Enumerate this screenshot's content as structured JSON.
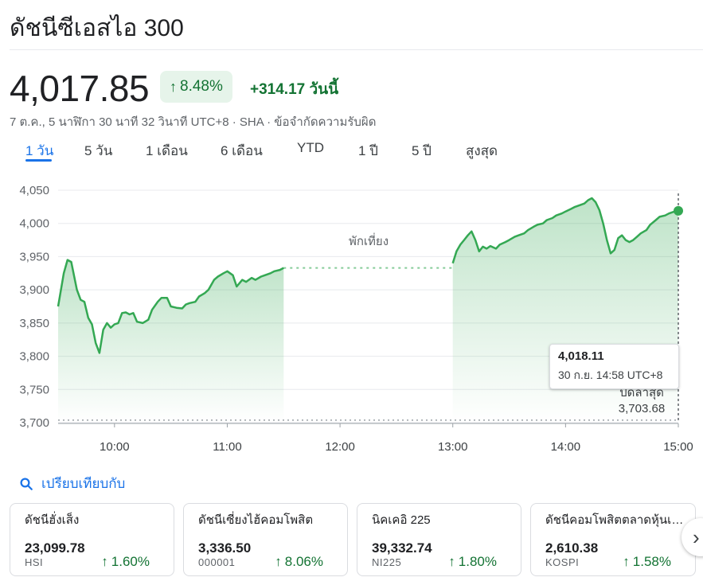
{
  "header": {
    "title": "ดัชนีซีเอสไอ 300"
  },
  "quote": {
    "price": "4,017.85",
    "percent": "8.48%",
    "change": "+314.17",
    "today_label": "วันนี้",
    "meta": "7 ต.ค., 5 นาฬิกา 30 นาที 32 วินาที UTC+8 · SHA · ข้อจำกัดความรับผิด"
  },
  "tabs": [
    {
      "label": "1 วัน",
      "active": true
    },
    {
      "label": "5 วัน"
    },
    {
      "label": "1 เดือน"
    },
    {
      "label": "6 เดือน"
    },
    {
      "label": "YTD"
    },
    {
      "label": "1 ปี"
    },
    {
      "label": "5 ปี"
    },
    {
      "label": "สูงสุด"
    }
  ],
  "chart_data": {
    "type": "area",
    "y_ticks": [
      "4,050",
      "4,000",
      "3,950",
      "3,900",
      "3,850",
      "3,800",
      "3,750",
      "3,700"
    ],
    "x_ticks": [
      "10:00",
      "11:00",
      "12:00",
      "13:00",
      "14:00",
      "15:00"
    ],
    "ylim": [
      3700,
      4050
    ],
    "xlim": [
      "09:30",
      "15:00"
    ],
    "lunch_label": "พักเที่ยง",
    "prev_close_label": "ปิดล่าสุด",
    "prev_close_value": "3,703.68",
    "prev_close": 3703.68,
    "color": "#34a853",
    "tooltip": {
      "value": "4,018.11",
      "time": "30 ก.ย. 14:58 UTC+8"
    },
    "morning": {
      "x": [
        "09:30",
        "09:33",
        "09:35",
        "09:37",
        "09:40",
        "09:42",
        "09:44",
        "09:46",
        "09:48",
        "09:50",
        "09:52",
        "09:54",
        "09:56",
        "09:58",
        "10:00",
        "10:02",
        "10:04",
        "10:06",
        "10:08",
        "10:10",
        "10:12",
        "10:15",
        "10:18",
        "10:20",
        "10:23",
        "10:25",
        "10:28",
        "10:30",
        "10:33",
        "10:36",
        "10:38",
        "10:40",
        "10:43",
        "10:45",
        "10:48",
        "10:50",
        "10:53",
        "10:55",
        "10:58",
        "11:00",
        "11:03",
        "11:05",
        "11:08",
        "11:10",
        "11:13",
        "11:15",
        "11:18",
        "11:20",
        "11:23",
        "11:25",
        "11:28",
        "11:30"
      ],
      "y": [
        3875,
        3925,
        3945,
        3942,
        3900,
        3885,
        3882,
        3858,
        3848,
        3820,
        3805,
        3840,
        3850,
        3843,
        3848,
        3850,
        3865,
        3866,
        3863,
        3865,
        3852,
        3850,
        3855,
        3870,
        3882,
        3888,
        3888,
        3875,
        3873,
        3872,
        3878,
        3880,
        3882,
        3890,
        3895,
        3900,
        3915,
        3920,
        3925,
        3928,
        3922,
        3905,
        3915,
        3912,
        3918,
        3915,
        3920,
        3922,
        3925,
        3928,
        3930,
        3933
      ]
    },
    "lunch_level": 3933,
    "afternoon": {
      "x": [
        "13:00",
        "13:02",
        "13:04",
        "13:06",
        "13:08",
        "13:10",
        "13:12",
        "13:14",
        "13:16",
        "13:18",
        "13:20",
        "13:23",
        "13:25",
        "13:28",
        "13:30",
        "13:33",
        "13:35",
        "13:38",
        "13:40",
        "13:43",
        "13:45",
        "13:48",
        "13:50",
        "13:53",
        "13:55",
        "13:58",
        "14:00",
        "14:03",
        "14:05",
        "14:08",
        "14:10",
        "14:12",
        "14:14",
        "14:16",
        "14:18",
        "14:20",
        "14:22",
        "14:24",
        "14:26",
        "14:28",
        "14:30",
        "14:32",
        "14:34",
        "14:36",
        "14:38",
        "14:40",
        "14:43",
        "14:45",
        "14:48",
        "14:50",
        "14:53",
        "14:55",
        "14:58",
        "15:00"
      ],
      "y": [
        3940,
        3958,
        3968,
        3975,
        3982,
        3988,
        3975,
        3958,
        3965,
        3962,
        3966,
        3962,
        3968,
        3972,
        3975,
        3980,
        3982,
        3985,
        3990,
        3995,
        3998,
        4000,
        4005,
        4008,
        4012,
        4015,
        4018,
        4022,
        4025,
        4028,
        4030,
        4035,
        4038,
        4032,
        4020,
        4000,
        3975,
        3955,
        3960,
        3978,
        3982,
        3975,
        3972,
        3975,
        3980,
        3985,
        3990,
        3998,
        4005,
        4010,
        4012,
        4015,
        4018,
        4019
      ]
    }
  },
  "compare": {
    "label": "เปรียบเทียบกับ"
  },
  "cards": [
    {
      "name": "ดัชนีฮั่งเส็ง",
      "value": "23,099.78",
      "symbol": "HSI",
      "pct": "1.60%"
    },
    {
      "name": "ดัชนีเซี่ยงไฮ้คอมโพสิต",
      "value": "3,336.50",
      "symbol": "000001",
      "pct": "8.06%"
    },
    {
      "name": "นิคเคอิ 225",
      "value": "39,332.74",
      "symbol": "NI225",
      "pct": "1.80%"
    },
    {
      "name": "ดัชนีคอมโพสิตตลาดหุ้นเกาหลี",
      "value": "2,610.38",
      "symbol": "KOSPI",
      "pct": "1.58%"
    }
  ],
  "icons": {
    "up_arrow": "↑",
    "search": "search-icon",
    "chevron": "›"
  }
}
